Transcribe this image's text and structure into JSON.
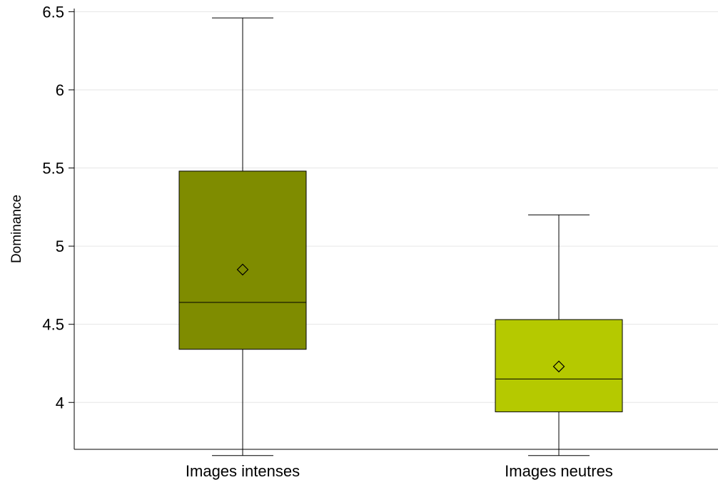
{
  "chart_data": {
    "type": "box",
    "ylabel": "Dominance",
    "xlabel": "",
    "ylim": [
      3.7,
      6.52
    ],
    "yticks": [
      4,
      4.5,
      5,
      5.5,
      6,
      6.5
    ],
    "ytick_labels": [
      "4",
      "4.5",
      "5",
      "5.5",
      "6",
      "6.5"
    ],
    "grid": "horizontal",
    "categories": [
      "Images intenses",
      "Images neutres"
    ],
    "boxes": [
      {
        "category": "Images intenses",
        "whisker_low": 3.66,
        "q1": 4.34,
        "median": 4.64,
        "q3": 5.48,
        "whisker_high": 6.46,
        "mean": 4.85,
        "color": "#7f8c00"
      },
      {
        "category": "Images neutres",
        "whisker_low": 3.66,
        "q1": 3.94,
        "median": 4.15,
        "q3": 4.53,
        "whisker_high": 5.2,
        "mean": 4.23,
        "color": "#b5c900"
      }
    ]
  }
}
